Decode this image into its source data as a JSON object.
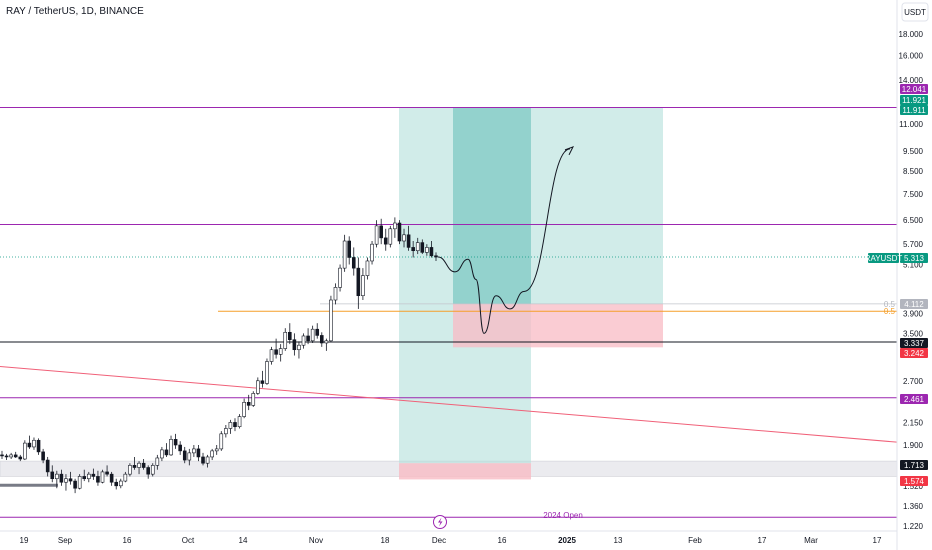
{
  "header": {
    "title": "RAY / TetherUS, 1D, BINANCE",
    "currency": "USDT"
  },
  "colors": {
    "up_candle": "#ffffff",
    "down_candle": "#131722",
    "level_purple": "#9c27b0",
    "trend_red": "#f06078",
    "fib_orange": "#f59f2a",
    "profit_zone": "#b2dfdb",
    "profit_zone_dark": "#80cbc4",
    "loss_zone": "#f8bbc4",
    "price_green": "#089981",
    "price_red": "#f23645",
    "price_black": "#131722",
    "grey_zone": "#e6e6ea"
  },
  "chart_data": {
    "type": "candlestick",
    "title": "RAY / TetherUS, 1D, BINANCE",
    "y_scale": "log",
    "ylim": [
      1.2,
      22.0
    ],
    "y_ticks": [
      "18.000",
      "16.000",
      "14.000",
      "11.000",
      "9.500",
      "8.500",
      "7.500",
      "6.500",
      "5.700",
      "5.100",
      "3.900",
      "3.500",
      "2.700",
      "2.150",
      "1.900",
      "1.520",
      "1.360",
      "1.220"
    ],
    "x_ticks": [
      "19",
      "Sep",
      "16",
      "Oct",
      "14",
      "Nov",
      "18",
      "Dec",
      "16",
      "2025",
      "13",
      "Feb",
      "17",
      "Mar",
      "17"
    ],
    "price_labels": [
      {
        "text": "12.041",
        "price": 12.041,
        "color": "#9c27b0"
      },
      {
        "text": "11.921",
        "price": 11.921,
        "color": "#089981"
      },
      {
        "text": "11.911",
        "price": 11.911,
        "color": "#089981"
      },
      {
        "text": "5.313",
        "price": 5.313,
        "color": "#089981",
        "prefix": "RAYUSDT"
      },
      {
        "text": "4.112",
        "price": 4.112,
        "color": "#b2b5be",
        "prefix": "0.5"
      },
      {
        "text": "3.337",
        "price": 3.337,
        "color": "#131722"
      },
      {
        "text": "3.242",
        "price": 3.242,
        "color": "#f23645"
      },
      {
        "text": "2.461",
        "price": 2.461,
        "color": "#9c27b0"
      },
      {
        "text": "1.713",
        "price": 1.713,
        "color": "#131722"
      },
      {
        "text": "1.574",
        "price": 1.574,
        "color": "#f23645"
      }
    ],
    "fib_label": {
      "text": "0.5",
      "price": 3.95
    },
    "horizontal_levels": [
      12.041,
      6.35,
      3.337,
      2.461,
      1.28
    ],
    "annotation": {
      "text": "2024 Open"
    },
    "candles": [
      [
        1.8,
        1.84,
        1.76,
        1.79
      ],
      [
        1.79,
        1.81,
        1.75,
        1.78
      ],
      [
        1.78,
        1.82,
        1.76,
        1.8
      ],
      [
        1.8,
        1.83,
        1.77,
        1.78
      ],
      [
        1.78,
        1.8,
        1.74,
        1.76
      ],
      [
        1.76,
        1.95,
        1.75,
        1.92
      ],
      [
        1.92,
        2.0,
        1.86,
        1.88
      ],
      [
        1.88,
        1.98,
        1.85,
        1.95
      ],
      [
        1.95,
        1.97,
        1.8,
        1.83
      ],
      [
        1.83,
        1.86,
        1.72,
        1.75
      ],
      [
        1.75,
        1.78,
        1.6,
        1.64
      ],
      [
        1.64,
        1.7,
        1.55,
        1.58
      ],
      [
        1.58,
        1.65,
        1.5,
        1.62
      ],
      [
        1.62,
        1.66,
        1.52,
        1.55
      ],
      [
        1.55,
        1.62,
        1.48,
        1.58
      ],
      [
        1.58,
        1.64,
        1.53,
        1.56
      ],
      [
        1.56,
        1.58,
        1.46,
        1.5
      ],
      [
        1.5,
        1.62,
        1.49,
        1.6
      ],
      [
        1.6,
        1.66,
        1.56,
        1.58
      ],
      [
        1.58,
        1.64,
        1.55,
        1.62
      ],
      [
        1.62,
        1.67,
        1.57,
        1.6
      ],
      [
        1.6,
        1.65,
        1.52,
        1.55
      ],
      [
        1.55,
        1.66,
        1.54,
        1.64
      ],
      [
        1.64,
        1.7,
        1.6,
        1.62
      ],
      [
        1.62,
        1.64,
        1.52,
        1.55
      ],
      [
        1.55,
        1.58,
        1.49,
        1.52
      ],
      [
        1.52,
        1.58,
        1.5,
        1.56
      ],
      [
        1.56,
        1.64,
        1.55,
        1.62
      ],
      [
        1.62,
        1.72,
        1.6,
        1.7
      ],
      [
        1.7,
        1.78,
        1.66,
        1.68
      ],
      [
        1.68,
        1.74,
        1.62,
        1.72
      ],
      [
        1.72,
        1.76,
        1.66,
        1.68
      ],
      [
        1.68,
        1.7,
        1.58,
        1.62
      ],
      [
        1.62,
        1.72,
        1.6,
        1.7
      ],
      [
        1.7,
        1.8,
        1.66,
        1.77
      ],
      [
        1.77,
        1.88,
        1.74,
        1.85
      ],
      [
        1.85,
        1.92,
        1.78,
        1.8
      ],
      [
        1.8,
        2.0,
        1.79,
        1.96
      ],
      [
        1.96,
        2.02,
        1.86,
        1.9
      ],
      [
        1.9,
        1.94,
        1.8,
        1.84
      ],
      [
        1.84,
        1.88,
        1.72,
        1.75
      ],
      [
        1.75,
        1.86,
        1.7,
        1.82
      ],
      [
        1.82,
        1.9,
        1.78,
        1.86
      ],
      [
        1.86,
        1.9,
        1.74,
        1.78
      ],
      [
        1.78,
        1.82,
        1.7,
        1.72
      ],
      [
        1.72,
        1.8,
        1.68,
        1.78
      ],
      [
        1.78,
        1.86,
        1.75,
        1.84
      ],
      [
        1.84,
        1.9,
        1.8,
        1.86
      ],
      [
        1.86,
        2.05,
        1.84,
        2.02
      ],
      [
        2.02,
        2.12,
        1.98,
        2.08
      ],
      [
        2.08,
        2.18,
        2.02,
        2.15
      ],
      [
        2.15,
        2.2,
        2.05,
        2.1
      ],
      [
        2.1,
        2.25,
        2.08,
        2.22
      ],
      [
        2.22,
        2.45,
        2.2,
        2.4
      ],
      [
        2.4,
        2.5,
        2.3,
        2.36
      ],
      [
        2.36,
        2.55,
        2.34,
        2.52
      ],
      [
        2.52,
        2.75,
        2.5,
        2.7
      ],
      [
        2.7,
        2.85,
        2.6,
        2.66
      ],
      [
        2.66,
        3.05,
        2.64,
        3.0
      ],
      [
        3.0,
        3.25,
        2.95,
        3.2
      ],
      [
        3.2,
        3.4,
        3.05,
        3.12
      ],
      [
        3.12,
        3.3,
        3.0,
        3.22
      ],
      [
        3.22,
        3.6,
        3.18,
        3.52
      ],
      [
        3.52,
        3.7,
        3.3,
        3.38
      ],
      [
        3.38,
        3.5,
        3.1,
        3.2
      ],
      [
        3.2,
        3.35,
        3.05,
        3.28
      ],
      [
        3.28,
        3.5,
        3.22,
        3.45
      ],
      [
        3.45,
        3.6,
        3.3,
        3.36
      ],
      [
        3.36,
        3.65,
        3.32,
        3.58
      ],
      [
        3.58,
        3.7,
        3.4,
        3.46
      ],
      [
        3.46,
        3.52,
        3.25,
        3.32
      ],
      [
        3.32,
        3.4,
        3.18,
        3.36
      ],
      [
        3.36,
        4.3,
        3.34,
        4.2
      ],
      [
        4.2,
        4.6,
        4.1,
        4.5
      ],
      [
        4.5,
        5.1,
        4.4,
        5.0
      ],
      [
        5.0,
        6.0,
        4.9,
        5.8
      ],
      [
        5.8,
        5.95,
        5.1,
        5.3
      ],
      [
        5.3,
        5.6,
        4.8,
        5.0
      ],
      [
        5.0,
        5.3,
        4.0,
        4.3
      ],
      [
        4.3,
        5.0,
        4.2,
        4.8
      ],
      [
        4.8,
        5.3,
        4.7,
        5.2
      ],
      [
        5.2,
        5.8,
        5.1,
        5.7
      ],
      [
        5.7,
        6.5,
        5.6,
        6.3
      ],
      [
        6.3,
        6.55,
        5.7,
        5.9
      ],
      [
        5.9,
        6.2,
        5.5,
        5.7
      ],
      [
        5.7,
        6.3,
        5.6,
        6.2
      ],
      [
        6.2,
        6.6,
        5.9,
        6.4
      ],
      [
        6.4,
        6.5,
        5.7,
        5.8
      ],
      [
        5.8,
        6.2,
        5.6,
        6.0
      ],
      [
        6.0,
        6.3,
        5.5,
        5.6
      ],
      [
        5.6,
        5.8,
        5.3,
        5.5
      ],
      [
        5.5,
        5.9,
        5.4,
        5.75
      ],
      [
        5.75,
        5.85,
        5.4,
        5.45
      ],
      [
        5.45,
        5.7,
        5.35,
        5.6
      ],
      [
        5.6,
        5.8,
        5.3,
        5.35
      ],
      [
        5.35,
        5.45,
        5.2,
        5.313
      ]
    ],
    "projection_path": [
      [
        5.313
      ],
      [
        4.9
      ],
      [
        5.25
      ],
      [
        4.7
      ],
      [
        3.5
      ],
      [
        4.3
      ],
      [
        4.0
      ],
      [
        4.4
      ],
      [
        9.6
      ]
    ]
  }
}
